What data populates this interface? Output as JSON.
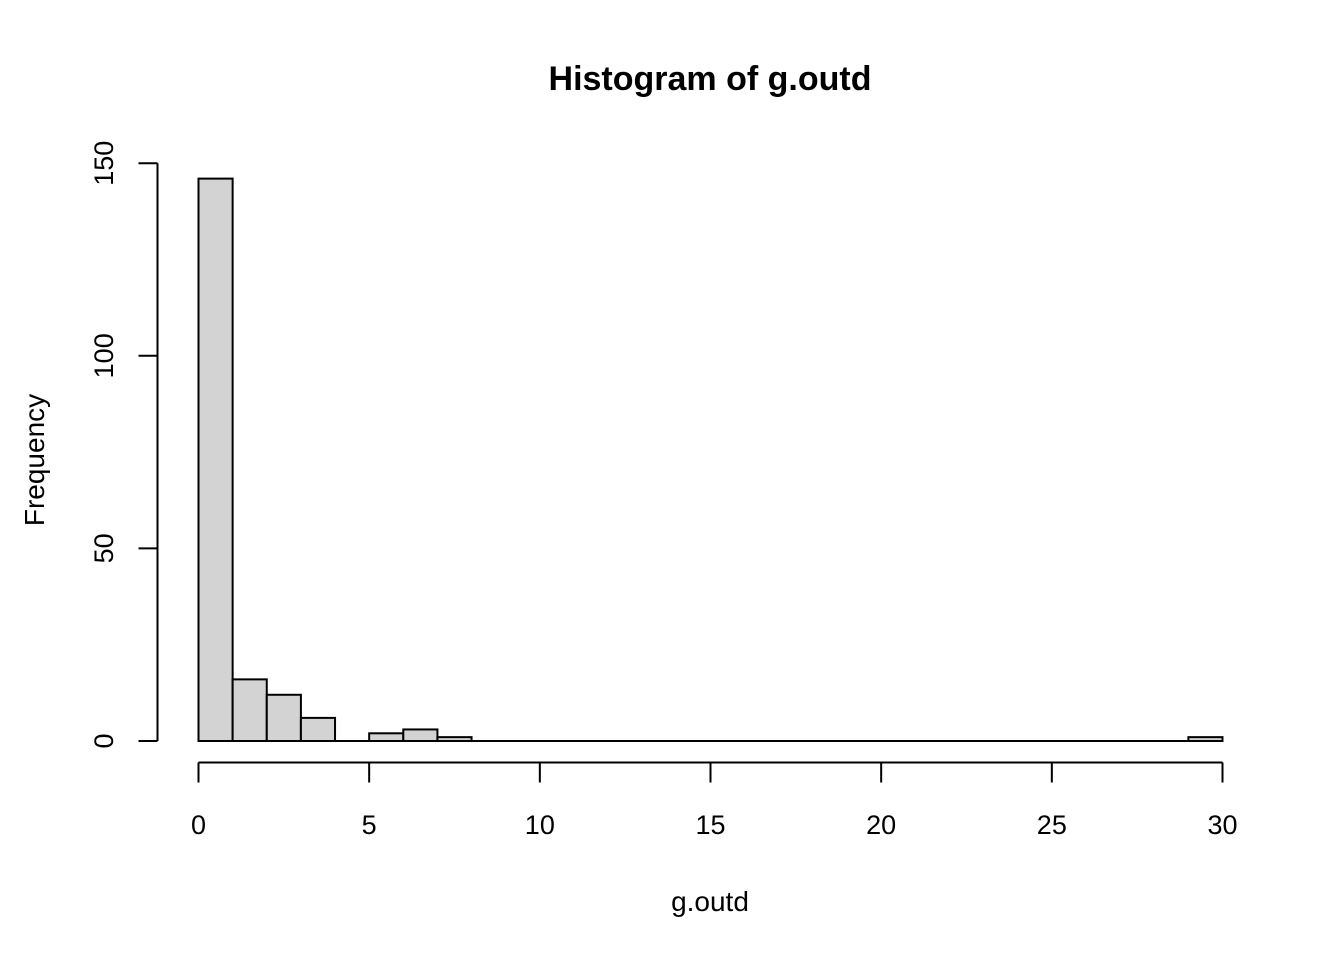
{
  "figure": {
    "title": "Histogram of g.outd",
    "xlabel": "g.outd",
    "ylabel": "Frequency"
  },
  "chart_data": {
    "type": "bar",
    "subtype": "histogram",
    "title": "Histogram of g.outd",
    "xlabel": "g.outd",
    "ylabel": "Frequency",
    "bin_start": 0,
    "bin_width": 1,
    "counts": [
      146,
      16,
      12,
      6,
      0,
      2,
      3,
      1,
      0,
      0,
      0,
      0,
      0,
      0,
      0,
      0,
      0,
      0,
      0,
      0,
      0,
      0,
      0,
      0,
      0,
      0,
      0,
      0,
      0,
      1
    ],
    "x_ticks": [
      0,
      5,
      10,
      15,
      20,
      25,
      30
    ],
    "y_ticks": [
      0,
      50,
      100,
      150
    ],
    "xlim": [
      0,
      30
    ],
    "ylim": [
      0,
      150
    ],
    "grid": false,
    "legend": false,
    "bar_fill": "#d3d3d3",
    "bar_stroke": "#000000",
    "axis_color": "#000000",
    "background": "#ffffff"
  }
}
